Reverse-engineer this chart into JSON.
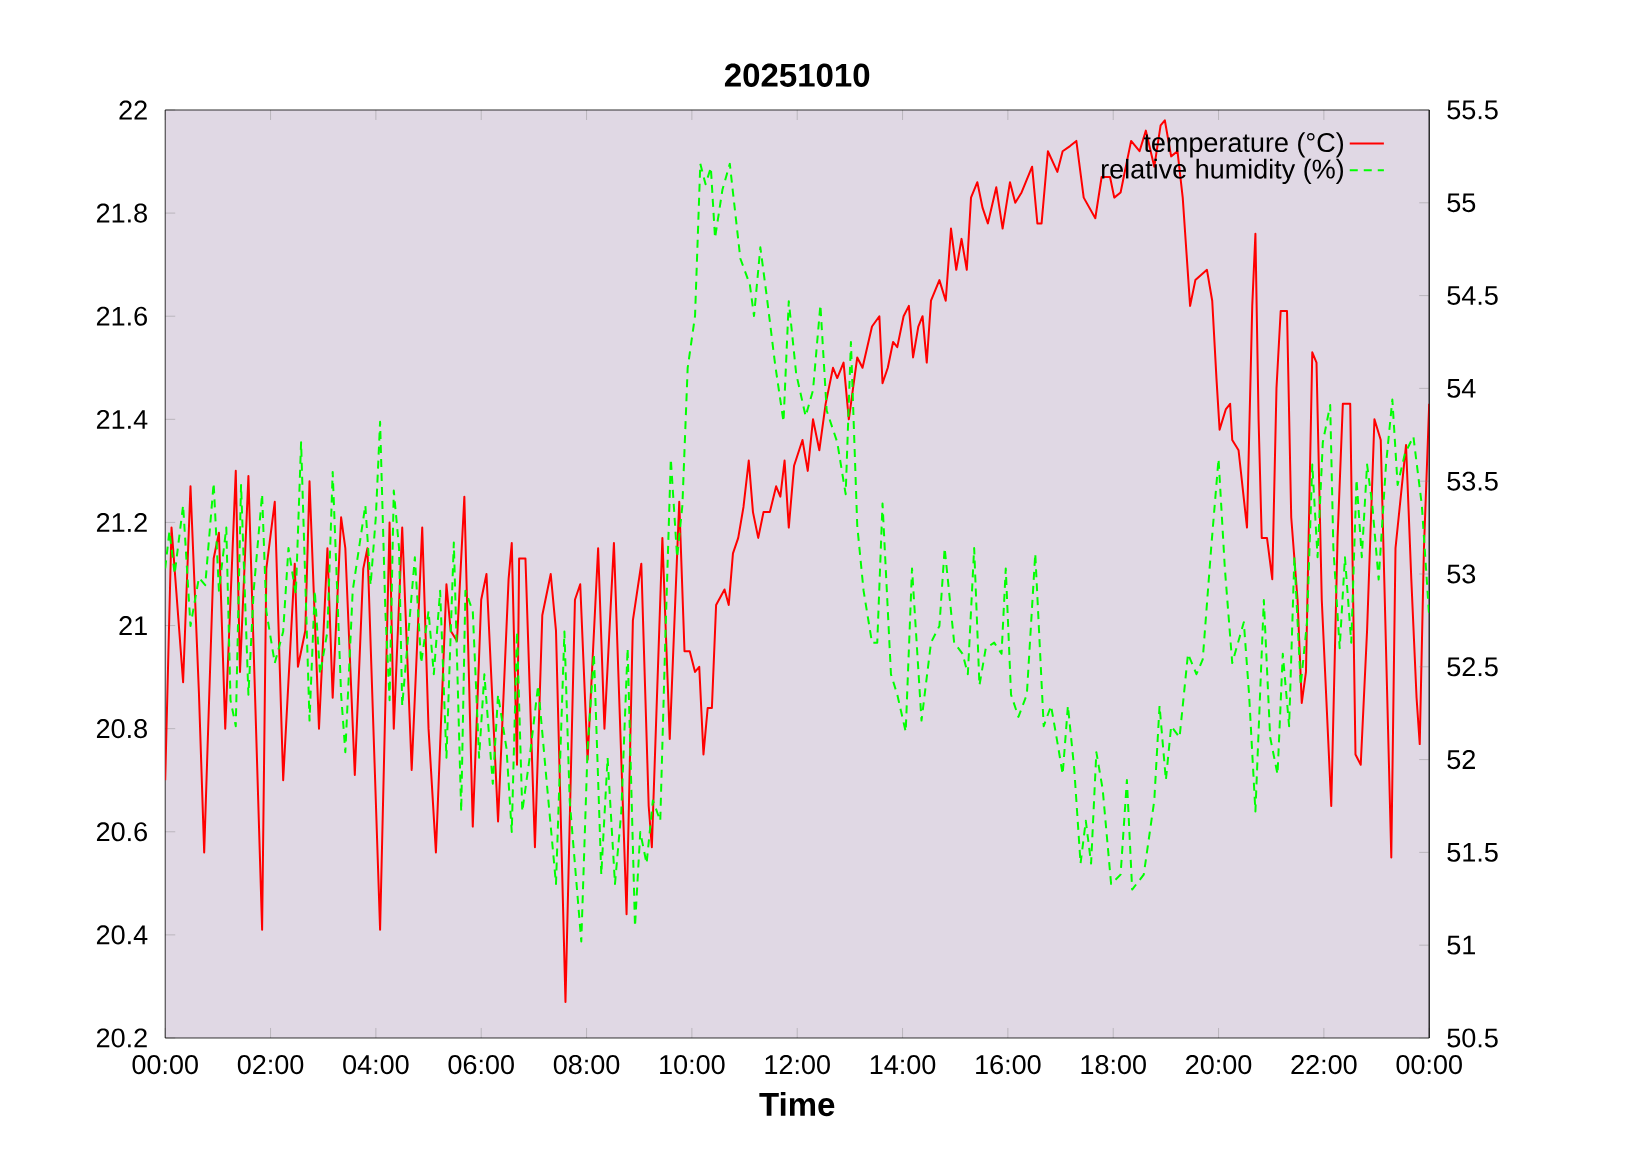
{
  "chart_data": {
    "type": "line",
    "title": "20251010",
    "xlabel": "Time",
    "xlim": [
      0,
      24
    ],
    "xticks": [
      {
        "value": 0,
        "label": "00:00"
      },
      {
        "value": 2,
        "label": "02:00"
      },
      {
        "value": 4,
        "label": "04:00"
      },
      {
        "value": 6,
        "label": "06:00"
      },
      {
        "value": 8,
        "label": "08:00"
      },
      {
        "value": 10,
        "label": "10:00"
      },
      {
        "value": 12,
        "label": "12:00"
      },
      {
        "value": 14,
        "label": "14:00"
      },
      {
        "value": 16,
        "label": "16:00"
      },
      {
        "value": 18,
        "label": "18:00"
      },
      {
        "value": 20,
        "label": "20:00"
      },
      {
        "value": 22,
        "label": "22:00"
      },
      {
        "value": 24,
        "label": "00:00"
      }
    ],
    "ylim": [
      20.2,
      22
    ],
    "yticks": [
      20.2,
      20.4,
      20.6,
      20.8,
      21,
      21.2,
      21.4,
      21.6,
      21.8,
      22
    ],
    "y2lim": [
      50.5,
      55.5
    ],
    "y2ticks": [
      50.5,
      51,
      51.5,
      52,
      52.5,
      53,
      53.5,
      54,
      54.5,
      55,
      55.5
    ],
    "legend": "top right",
    "grid": false,
    "series": [
      {
        "name": "temperature (°C)",
        "color": "#ff0000",
        "line_style": "solid",
        "x": [
          0,
          0.12,
          0.34,
          0.48,
          0.64,
          0.74,
          0.92,
          1.02,
          1.14,
          1.34,
          1.42,
          1.58,
          1.84,
          1.92,
          2.08,
          2.24,
          2.46,
          2.52,
          2.66,
          2.74,
          2.92,
          3.08,
          3.18,
          3.34,
          3.42,
          3.6,
          3.76,
          3.84,
          4.08,
          4.26,
          4.34,
          4.5,
          4.68,
          4.88,
          5,
          5.14,
          5.34,
          5.42,
          5.54,
          5.68,
          5.84,
          6,
          6.1,
          6.32,
          6.52,
          6.58,
          6.68,
          6.72,
          6.84,
          7.02,
          7.16,
          7.32,
          7.42,
          7.6,
          7.78,
          7.88,
          8.02,
          8.22,
          8.34,
          8.52,
          8.76,
          8.88,
          9.04,
          9.18,
          9.24,
          9.44,
          9.58,
          9.76,
          9.86,
          9.96,
          10.06,
          10.14,
          10.22,
          10.3,
          10.38,
          10.46,
          10.62,
          10.7,
          10.78,
          10.88,
          10.98,
          11.08,
          11.16,
          11.26,
          11.36,
          11.48,
          11.6,
          11.68,
          11.76,
          11.84,
          11.94,
          12.1,
          12.2,
          12.3,
          12.42,
          12.54,
          12.68,
          12.76,
          12.88,
          12.98,
          13.14,
          13.24,
          13.42,
          13.56,
          13.62,
          13.72,
          13.82,
          13.9,
          14.02,
          14.12,
          14.2,
          14.3,
          14.38,
          14.46,
          14.54,
          14.7,
          14.82,
          14.92,
          15.02,
          15.12,
          15.22,
          15.3,
          15.42,
          15.52,
          15.62,
          15.78,
          15.9,
          16.04,
          16.14,
          16.26,
          16.46,
          16.56,
          16.64,
          16.76,
          16.94,
          17.04,
          17.18,
          17.3,
          17.44,
          17.66,
          17.78,
          17.94,
          18.02,
          18.14,
          18.34,
          18.5,
          18.62,
          18.78,
          18.9,
          18.98,
          19.1,
          19.22,
          19.32,
          19.46,
          19.56,
          19.78,
          19.88,
          19.96,
          20.02,
          20.14,
          20.22,
          20.26,
          20.38,
          20.54,
          20.64,
          20.7,
          20.76,
          20.82,
          20.92,
          21.02,
          21.1,
          21.18,
          21.3,
          21.38,
          21.5,
          21.58,
          21.66,
          21.78,
          21.86,
          21.96,
          22.14,
          22.26,
          22.36,
          22.5,
          22.6,
          22.7,
          22.82,
          22.96,
          23.08,
          23.28,
          23.36,
          23.56,
          23.66,
          23.76,
          23.82,
          23.9,
          24
        ],
        "values": [
          20.7,
          21.19,
          20.89,
          21.27,
          20.87,
          20.56,
          21.13,
          21.18,
          20.8,
          21.3,
          20.91,
          21.29,
          20.41,
          21.11,
          21.24,
          20.7,
          21.12,
          20.92,
          20.99,
          21.28,
          20.8,
          21.15,
          20.86,
          21.21,
          21.15,
          20.71,
          21.11,
          21.15,
          20.41,
          21.2,
          20.8,
          21.19,
          20.72,
          21.19,
          20.8,
          20.56,
          21.08,
          20.99,
          20.97,
          21.25,
          20.61,
          21.05,
          21.1,
          20.62,
          21.09,
          21.16,
          20.73,
          21.13,
          21.13,
          20.57,
          21.02,
          21.1,
          20.99,
          20.27,
          21.05,
          21.08,
          20.74,
          21.15,
          20.8,
          21.16,
          20.44,
          21.01,
          21.12,
          20.65,
          20.57,
          21.17,
          20.78,
          21.24,
          20.95,
          20.95,
          20.91,
          20.92,
          20.75,
          20.84,
          20.84,
          21.04,
          21.07,
          21.04,
          21.14,
          21.17,
          21.23,
          21.32,
          21.22,
          21.17,
          21.22,
          21.22,
          21.27,
          21.25,
          21.32,
          21.19,
          21.31,
          21.36,
          21.3,
          21.4,
          21.34,
          21.43,
          21.5,
          21.48,
          21.51,
          21.4,
          21.52,
          21.5,
          21.58,
          21.6,
          21.47,
          21.5,
          21.55,
          21.54,
          21.6,
          21.62,
          21.52,
          21.58,
          21.6,
          21.51,
          21.63,
          21.67,
          21.63,
          21.77,
          21.69,
          21.75,
          21.69,
          21.83,
          21.86,
          21.81,
          21.78,
          21.85,
          21.77,
          21.86,
          21.82,
          21.84,
          21.89,
          21.78,
          21.78,
          21.92,
          21.88,
          21.92,
          21.93,
          21.94,
          21.83,
          21.79,
          21.87,
          21.87,
          21.83,
          21.84,
          21.94,
          21.92,
          21.96,
          21.89,
          21.97,
          21.98,
          21.91,
          21.92,
          21.83,
          21.62,
          21.67,
          21.69,
          21.63,
          21.48,
          21.38,
          21.42,
          21.43,
          21.36,
          21.34,
          21.19,
          21.62,
          21.76,
          21.4,
          21.17,
          21.17,
          21.09,
          21.46,
          21.61,
          21.61,
          21.21,
          21.05,
          20.85,
          20.91,
          21.53,
          21.51,
          21.05,
          20.65,
          21.17,
          21.43,
          21.43,
          20.75,
          20.73,
          20.99,
          21.4,
          21.36,
          20.55,
          21.15,
          21.35,
          21.09,
          20.86,
          20.77,
          21.15,
          21.43
        ]
      },
      {
        "name": "relative humidity (%)",
        "color": "#00ff00",
        "line_style": "dashed",
        "axis": "y2",
        "x": [
          0,
          0.08,
          0.18,
          0.34,
          0.48,
          0.64,
          0.76,
          0.92,
          1.02,
          1.16,
          1.24,
          1.34,
          1.44,
          1.58,
          1.68,
          1.84,
          1.92,
          2.08,
          2.24,
          2.34,
          2.48,
          2.58,
          2.74,
          2.84,
          2.94,
          3.08,
          3.18,
          3.34,
          3.42,
          3.56,
          3.8,
          3.9,
          4,
          4.08,
          4.18,
          4.26,
          4.34,
          4.44,
          4.5,
          4.74,
          4.86,
          5,
          5.1,
          5.22,
          5.34,
          5.48,
          5.62,
          5.7,
          5.84,
          5.96,
          6.06,
          6.22,
          6.32,
          6.48,
          6.58,
          6.68,
          6.78,
          6.92,
          7.08,
          7.24,
          7.42,
          7.58,
          7.68,
          7.9,
          8.02,
          8.14,
          8.28,
          8.4,
          8.54,
          8.66,
          8.78,
          8.92,
          9.02,
          9.14,
          9.26,
          9.4,
          9.5,
          9.6,
          9.72,
          9.82,
          9.92,
          10.06,
          10.16,
          10.26,
          10.36,
          10.44,
          10.58,
          10.72,
          10.92,
          11.1,
          11.18,
          11.3,
          11.42,
          11.58,
          11.74,
          11.84,
          11.98,
          12.16,
          12.3,
          12.44,
          12.56,
          12.76,
          12.92,
          13.02,
          13.14,
          13.26,
          13.42,
          13.52,
          13.62,
          13.78,
          13.9,
          14.06,
          14.18,
          14.36,
          14.54,
          14.7,
          14.8,
          14.98,
          15.14,
          15.24,
          15.36,
          15.46,
          15.58,
          15.74,
          15.88,
          15.96,
          16.06,
          16.2,
          16.36,
          16.52,
          16.68,
          16.82,
          16.96,
          17.04,
          17.14,
          17.26,
          17.38,
          17.48,
          17.58,
          17.68,
          17.8,
          17.96,
          18.14,
          18.26,
          18.36,
          18.58,
          18.78,
          18.88,
          19,
          19.1,
          19.26,
          19.42,
          19.58,
          19.7,
          19.86,
          20,
          20.12,
          20.26,
          20.48,
          20.58,
          20.7,
          20.86,
          20.98,
          21.12,
          21.22,
          21.34,
          21.44,
          21.56,
          21.68,
          21.78,
          21.88,
          21.98,
          22.12,
          22.18,
          22.3,
          22.4,
          22.52,
          22.62,
          22.72,
          22.82,
          22.92,
          23.04,
          23.18,
          23.3,
          23.4,
          23.54,
          23.7,
          23.86,
          24
        ],
        "values": [
          53.03,
          53.23,
          53,
          53.37,
          52.72,
          52.98,
          52.94,
          53.49,
          52.91,
          53.25,
          52.32,
          52.18,
          53.48,
          52.35,
          52.91,
          53.43,
          52.8,
          52.52,
          52.69,
          53.14,
          52.89,
          53.71,
          52.21,
          52.91,
          52.46,
          52.69,
          53.55,
          52.35,
          52.04,
          52.91,
          53.37,
          52.94,
          53.31,
          53.82,
          52.8,
          52.32,
          53.45,
          53.14,
          52.29,
          53.09,
          52.52,
          52.8,
          52.46,
          52.91,
          52.01,
          53.17,
          51.72,
          52.91,
          52.8,
          52.01,
          52.46,
          51.87,
          52.35,
          52.06,
          51.61,
          52.69,
          51.72,
          52.01,
          52.4,
          51.89,
          51.33,
          52.69,
          51.78,
          51.02,
          52.06,
          52.57,
          51.38,
          52.01,
          51.33,
          51.72,
          52.6,
          51.1,
          51.61,
          51.44,
          51.78,
          51.67,
          52.69,
          53.62,
          53.09,
          53.37,
          54.11,
          54.39,
          55.21,
          55.1,
          55.19,
          54.81,
          55.07,
          55.21,
          54.7,
          54.56,
          54.39,
          54.76,
          54.5,
          54.13,
          53.82,
          54.47,
          54.08,
          53.85,
          53.99,
          54.45,
          53.88,
          53.71,
          53.43,
          54.25,
          53.26,
          52.91,
          52.63,
          52.63,
          53.38,
          52.46,
          52.35,
          52.15,
          53.03,
          52.21,
          52.63,
          52.72,
          53.14,
          52.63,
          52.57,
          52.46,
          53.14,
          52.4,
          52.6,
          52.63,
          52.57,
          53.03,
          52.35,
          52.23,
          52.35,
          53.11,
          52.18,
          52.29,
          52.06,
          51.92,
          52.29,
          51.95,
          51.44,
          51.67,
          51.44,
          52.04,
          51.84,
          51.33,
          51.38,
          51.89,
          51.3,
          51.38,
          51.78,
          52.29,
          51.89,
          52.18,
          52.12,
          52.57,
          52.46,
          52.54,
          53.14,
          53.62,
          53.03,
          52.52,
          52.74,
          52.35,
          51.72,
          52.86,
          52.12,
          51.92,
          52.57,
          52.18,
          53.09,
          52.4,
          52.74,
          53.59,
          53.09,
          53.71,
          53.91,
          53.14,
          52.6,
          53.09,
          52.63,
          53.51,
          53.09,
          53.59,
          53.37,
          52.97,
          53.59,
          53.94,
          53.48,
          53.65,
          53.74,
          53.37,
          52.77
        ]
      }
    ]
  }
}
